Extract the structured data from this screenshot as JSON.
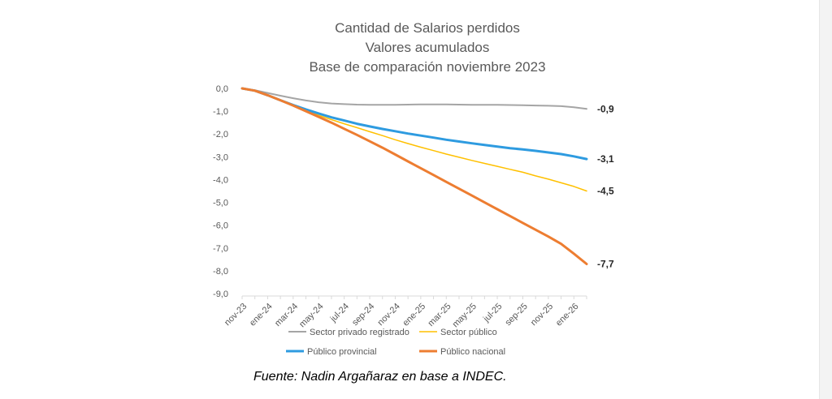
{
  "chart_data": {
    "type": "line",
    "title": [
      "Cantidad de Salarios perdidos",
      "Valores acumulados",
      "Base de comparación noviembre 2023"
    ],
    "x": [
      "nov-23",
      "dic-23",
      "ene-24",
      "feb-24",
      "mar-24",
      "abr-24",
      "may-24",
      "jun-24",
      "jul-24",
      "ago-24",
      "sep-24",
      "oct-24",
      "nov-24",
      "dic-24",
      "ene-25",
      "feb-25",
      "mar-25",
      "abr-25",
      "may-25",
      "jun-25",
      "jul-25",
      "ago-25",
      "sep-25",
      "oct-25",
      "nov-25",
      "dic-25",
      "ene-26",
      "feb-26"
    ],
    "x_tick_labels": [
      "nov-23",
      "ene-24",
      "mar-24",
      "may-24",
      "jul-24",
      "sep-24",
      "nov-24",
      "ene-25",
      "mar-25",
      "may-25",
      "jul-25",
      "sep-25",
      "nov-25",
      "ene-26"
    ],
    "y_tick_labels": [
      "0,0",
      "-1,0",
      "-2,0",
      "-3,0",
      "-4,0",
      "-5,0",
      "-6,0",
      "-7,0",
      "-8,0",
      "-9,0"
    ],
    "ylim": [
      -9,
      0
    ],
    "grid": false,
    "legend_position": "bottom",
    "series": [
      {
        "name": "Sector privado registrado",
        "color": "#a5a5a5",
        "end_label": "-0,9",
        "values": [
          0,
          -0.08,
          -0.2,
          -0.32,
          -0.43,
          -0.53,
          -0.61,
          -0.66,
          -0.69,
          -0.71,
          -0.72,
          -0.72,
          -0.72,
          -0.71,
          -0.7,
          -0.7,
          -0.7,
          -0.71,
          -0.72,
          -0.72,
          -0.72,
          -0.73,
          -0.74,
          -0.75,
          -0.76,
          -0.78,
          -0.83,
          -0.9
        ]
      },
      {
        "name": "Sector público",
        "color": "#ffc000",
        "end_label": "-4,5",
        "values": [
          0,
          -0.1,
          -0.3,
          -0.52,
          -0.75,
          -0.97,
          -1.18,
          -1.37,
          -1.55,
          -1.72,
          -1.9,
          -2.07,
          -2.25,
          -2.42,
          -2.58,
          -2.73,
          -2.88,
          -3.02,
          -3.16,
          -3.29,
          -3.42,
          -3.55,
          -3.68,
          -3.84,
          -3.98,
          -4.14,
          -4.3,
          -4.5
        ]
      },
      {
        "name": "Público provincial",
        "color": "#2e9be0",
        "end_label": "-3,1",
        "values": [
          0,
          -0.1,
          -0.3,
          -0.52,
          -0.73,
          -0.92,
          -1.1,
          -1.27,
          -1.41,
          -1.55,
          -1.67,
          -1.78,
          -1.88,
          -1.98,
          -2.07,
          -2.16,
          -2.25,
          -2.33,
          -2.41,
          -2.48,
          -2.55,
          -2.62,
          -2.68,
          -2.74,
          -2.81,
          -2.88,
          -2.98,
          -3.1
        ]
      },
      {
        "name": "Público nacional",
        "color": "#ed7d31",
        "end_label": "-7,7",
        "values": [
          0,
          -0.1,
          -0.3,
          -0.52,
          -0.75,
          -1.0,
          -1.25,
          -1.5,
          -1.77,
          -2.04,
          -2.32,
          -2.6,
          -2.9,
          -3.2,
          -3.5,
          -3.8,
          -4.1,
          -4.4,
          -4.7,
          -5.0,
          -5.3,
          -5.6,
          -5.9,
          -6.2,
          -6.5,
          -6.82,
          -7.25,
          -7.7
        ]
      }
    ]
  },
  "source_note": "Fuente: Nadin Argañaraz en base a INDEC."
}
